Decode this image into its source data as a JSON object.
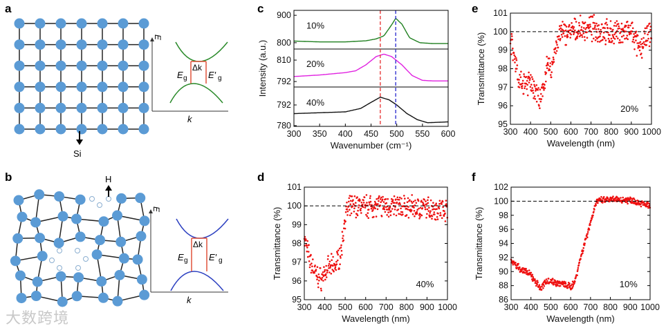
{
  "panels": {
    "a": "a",
    "b": "b",
    "c": "c",
    "d": "d",
    "e": "e",
    "f": "f"
  },
  "diagram_a": {
    "axis_e": "E",
    "axis_k": "k",
    "eg": "E",
    "eg_sub": "g",
    "dk": "Δk",
    "egp": "E′",
    "egp_sub": "g",
    "atom": "Si",
    "band_color": "#2a8a2a"
  },
  "diagram_b": {
    "axis_e": "E",
    "axis_k": "k",
    "eg": "E",
    "eg_sub": "g",
    "dk": "Δk",
    "egp": "E′",
    "egp_sub": "g",
    "atom": "H",
    "band_color": "#2b3fc0"
  },
  "colors": {
    "atom": "#5b9bd5",
    "arrow": "#e0523a",
    "scatter": "#ee1111"
  },
  "watermark": "大数跨境",
  "chart_data": [
    {
      "panel": "c",
      "type": "line",
      "title": "",
      "xlabel": "Wavenumber (cm⁻¹)",
      "ylabel": "Intensity (a.u.)",
      "xlim": [
        300,
        600
      ],
      "xticks": [
        300,
        350,
        400,
        450,
        500,
        550,
        600
      ],
      "vlines": [
        {
          "x": 468,
          "color": "#e83a3a"
        },
        {
          "x": 498,
          "color": "#3434d0"
        }
      ],
      "series": [
        {
          "name": "10%",
          "color": "#1f7f1f",
          "ylim": [
            777,
            918
          ],
          "yticks": [
            800,
            900
          ],
          "x": [
            300,
            350,
            400,
            440,
            460,
            475,
            490,
            498,
            510,
            525,
            545,
            570,
            600
          ],
          "y": [
            806,
            803,
            803,
            807,
            814,
            825,
            865,
            889,
            868,
            818,
            800,
            797,
            797
          ]
        },
        {
          "name": "20%",
          "color": "#e020e0",
          "ylim": [
            787.4,
            819.3
          ],
          "yticks": [
            792,
            810
          ],
          "x": [
            300,
            350,
            400,
            420,
            440,
            460,
            475,
            490,
            510,
            530,
            550,
            570,
            600
          ],
          "y": [
            796.2,
            797.5,
            799.5,
            801,
            806,
            813,
            815,
            813,
            806,
            797,
            793,
            792.5,
            792.5
          ]
        },
        {
          "name": "40%",
          "color": "#111111",
          "ylim": [
            779.6,
            802.4
          ],
          "yticks": [
            780,
            792
          ],
          "x": [
            300,
            350,
            400,
            430,
            450,
            468,
            485,
            500,
            520,
            540,
            560,
            600
          ],
          "y": [
            787,
            787.5,
            788,
            790,
            793.5,
            796.5,
            795,
            792,
            787,
            783.5,
            781.7,
            782.2
          ]
        }
      ]
    },
    {
      "panel": "d",
      "type": "scatter",
      "xlabel": "Wavelength (nm)",
      "ylabel": "Transmittance  (%)",
      "xlim": [
        300,
        1000
      ],
      "ylim": [
        95,
        101
      ],
      "xticks": [
        300,
        400,
        500,
        600,
        700,
        800,
        900,
        1000
      ],
      "yticks": [
        95,
        96,
        97,
        98,
        99,
        100,
        101
      ],
      "reference_line": 100,
      "annotation": "40%",
      "noise_amplitude": 0.55,
      "series": [
        {
          "name": "40%",
          "x": [
            300,
            330,
            360,
            380,
            420,
            450,
            480,
            500,
            530,
            700,
            1000
          ],
          "y": [
            98.3,
            97,
            96.3,
            96.1,
            96.7,
            96.8,
            97.5,
            99.5,
            100,
            100,
            99.8
          ]
        }
      ]
    },
    {
      "panel": "e",
      "type": "scatter",
      "xlabel": "Wavelength (nm)",
      "ylabel": "Transmittance (%)",
      "xlim": [
        300,
        1000
      ],
      "ylim": [
        95,
        101
      ],
      "xticks": [
        300,
        400,
        500,
        600,
        700,
        800,
        900,
        1000
      ],
      "yticks": [
        95,
        96,
        97,
        98,
        99,
        100,
        101
      ],
      "reference_line": 100,
      "annotation": "20%",
      "noise_amplitude": 0.6,
      "series": [
        {
          "name": "20%",
          "x": [
            300,
            310,
            330,
            340,
            360,
            400,
            430,
            450,
            470,
            490,
            500,
            520,
            550,
            600,
            700,
            800,
            900,
            940,
            960,
            1000
          ],
          "y": [
            100,
            99,
            98.3,
            97.3,
            97.2,
            97.2,
            96.8,
            96.1,
            97.5,
            98.3,
            97.7,
            99,
            99.9,
            100,
            100.2,
            99.9,
            100,
            99,
            99.4,
            100
          ]
        }
      ]
    },
    {
      "panel": "f",
      "type": "scatter",
      "xlabel": "Wavelength (nm)",
      "ylabel": "Transmittance (%)",
      "xlim": [
        300,
        1000
      ],
      "ylim": [
        86,
        102
      ],
      "xticks": [
        300,
        400,
        500,
        600,
        700,
        800,
        900,
        1000
      ],
      "yticks": [
        86,
        88,
        90,
        92,
        94,
        96,
        98,
        100,
        102
      ],
      "reference_line": 100,
      "annotation": "10%",
      "noise_amplitude": 0.45,
      "series": [
        {
          "name": "10%",
          "x": [
            300,
            350,
            400,
            450,
            480,
            520,
            560,
            600,
            620,
            650,
            700,
            730,
            800,
            900,
            1000
          ],
          "y": [
            91.5,
            90.3,
            89.5,
            87.5,
            88.8,
            88.5,
            88.2,
            87.8,
            88.5,
            92,
            97,
            100,
            100.2,
            100.2,
            99.3
          ]
        }
      ]
    }
  ]
}
